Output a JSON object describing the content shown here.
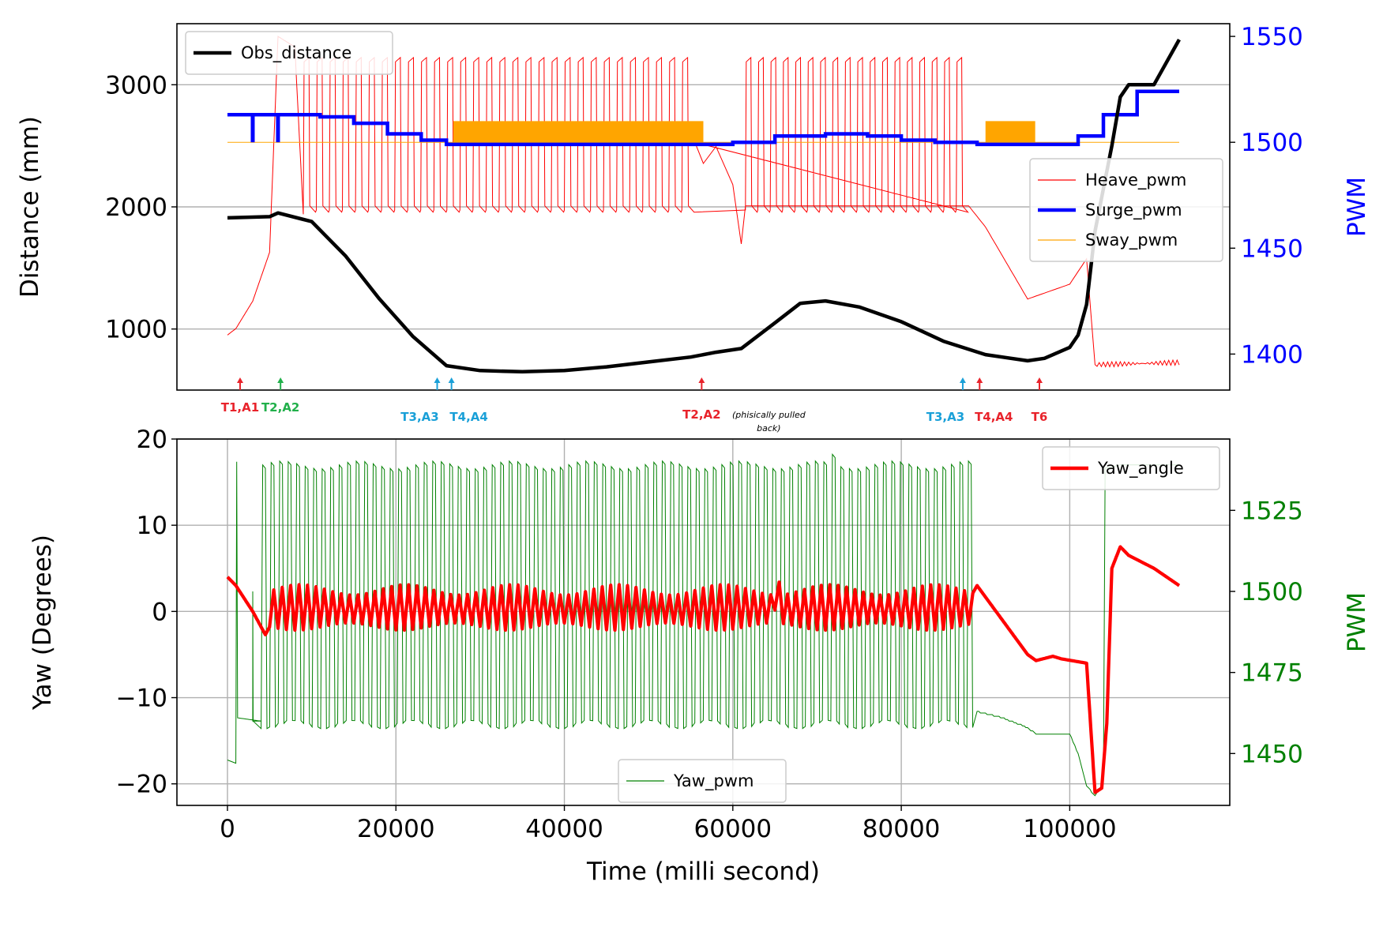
{
  "chart_data": [
    {
      "type": "line",
      "xlabel": "",
      "ylabel": "Distance (mm)",
      "y2label": "PWM",
      "xlim": [
        -6000,
        119000
      ],
      "ylim": [
        500,
        3500
      ],
      "y2lim": [
        1383,
        1556
      ],
      "yticks": [
        1000,
        2000,
        3000
      ],
      "y2ticks": [
        1400,
        1450,
        1500,
        1550
      ],
      "grid": true,
      "colors": {
        "obs": "#000000",
        "heave": "#ff0000",
        "surge": "#0000ff",
        "sway": "#ffa500",
        "axis2": "#0000ff"
      },
      "legends": {
        "left": {
          "placement": "upper-left",
          "entries": [
            "Obs_distance"
          ]
        },
        "right": {
          "placement": "center-right",
          "entries": [
            "Heave_pwm",
            "Surge_pwm",
            "Sway_pwm"
          ]
        }
      },
      "series": [
        {
          "name": "Obs_distance",
          "axis": "left",
          "x": [
            0,
            5000,
            6000,
            10000,
            14000,
            18000,
            22000,
            26000,
            30000,
            35000,
            40000,
            45000,
            50000,
            55000,
            58000,
            61000,
            65000,
            68000,
            71000,
            75000,
            80000,
            85000,
            90000,
            95000,
            97000,
            100000,
            101000,
            102000,
            103000,
            105000,
            106000,
            107000,
            110000,
            113000
          ],
          "y": [
            1910,
            1920,
            1950,
            1880,
            1600,
            1250,
            940,
            700,
            660,
            650,
            660,
            690,
            730,
            770,
            810,
            840,
            1050,
            1210,
            1230,
            1180,
            1060,
            900,
            790,
            740,
            760,
            850,
            950,
            1200,
            1800,
            2500,
            2900,
            3000,
            3000,
            3370
          ]
        },
        {
          "name": "Heave_pwm",
          "axis": "right",
          "description": "oscillation 1466-1540, about 50 cycles between 9000 and 88000 ms",
          "x": [
            0,
            1000,
            3000,
            5000,
            6000,
            8000,
            9000,
            27000,
            55000,
            58000,
            60000,
            61000,
            62000,
            66000,
            72000,
            80000,
            88000,
            90000,
            95000,
            100000,
            102000,
            103000,
            113000
          ],
          "y": [
            1409,
            1412,
            1425,
            1448,
            1550,
            1545,
            1466,
            1540,
            1540,
            1500,
            1470,
            1452,
            1545,
            1470,
            1540,
            1540,
            1470,
            1460,
            1426,
            1433,
            1445,
            1395,
            1396
          ]
        },
        {
          "name": "Surge_pwm",
          "axis": "right",
          "x": [
            0,
            3000,
            8000,
            11000,
            15000,
            19000,
            23000,
            26000,
            45000,
            56000,
            60000,
            65000,
            71000,
            76000,
            80000,
            84000,
            89000,
            96000,
            101000,
            104000,
            108000,
            113000
          ],
          "y": [
            1513,
            1513,
            1513,
            1512,
            1509,
            1504,
            1501,
            1499,
            1499,
            1499,
            1500,
            1503,
            1504,
            1503,
            1501,
            1500,
            1499,
            1499,
            1503,
            1513,
            1524,
            1524
          ]
        },
        {
          "name": "Sway_pwm",
          "axis": "right",
          "x": [
            0,
            26800,
            56500,
            90000,
            95900,
            113000
          ],
          "y": [
            1500,
            1500,
            1500,
            1500,
            1500,
            1500
          ]
        }
      ],
      "annotations": [
        {
          "text": "T1,A1",
          "x": 1500,
          "color": "#e8232b"
        },
        {
          "text": "T2,A2",
          "x": 6300,
          "color": "#22b04b"
        },
        {
          "text": "T3,A3",
          "x": 24900,
          "color": "#1aa0d8"
        },
        {
          "text": "T4,A4",
          "x": 26600,
          "color": "#1aa0d8"
        },
        {
          "text": "T2,A2",
          "x": 56300,
          "color": "#e8232b",
          "note": "(phisically pulled back)"
        },
        {
          "text": "T3,A3",
          "x": 87300,
          "color": "#1aa0d8"
        },
        {
          "text": "T4,A4",
          "x": 89300,
          "color": "#e8232b"
        },
        {
          "text": "T6",
          "x": 96400,
          "color": "#e8232b"
        }
      ]
    },
    {
      "type": "line",
      "xlabel": "Time (milli second)",
      "ylabel": "Yaw (Degrees)",
      "y2label": "PWM",
      "xlim": [
        -6000,
        119000
      ],
      "ylim": [
        -22.5,
        20
      ],
      "y2lim": [
        1434,
        1547
      ],
      "xticks": [
        0,
        20000,
        40000,
        60000,
        80000,
        100000
      ],
      "yticks": [
        -20,
        -10,
        0,
        10,
        20
      ],
      "y2ticks": [
        1450,
        1475,
        1500,
        1525
      ],
      "grid": true,
      "colors": {
        "yaw_angle": "#ff0000",
        "yaw_pwm": "#008000",
        "axis2": "#008000"
      },
      "legends": {
        "angle": {
          "placement": "upper-right",
          "entries": [
            "Yaw_angle"
          ]
        },
        "pwm": {
          "placement": "lower-center",
          "entries": [
            "Yaw_pwm"
          ]
        }
      },
      "series": [
        {
          "name": "Yaw_angle",
          "axis": "left",
          "description": "oscillation about 0 deg (about +-3) between 5000 and 89000 ms",
          "x": [
            0,
            1000,
            3000,
            4500,
            6000,
            10000,
            20000,
            30000,
            40000,
            50000,
            60000,
            61000,
            70000,
            80000,
            89000,
            92000,
            95000,
            96000,
            98000,
            99000,
            102000,
            103000,
            103800,
            104400,
            105000,
            106000,
            107000,
            110000,
            113000
          ],
          "y": [
            4,
            3,
            0,
            -2.7,
            0,
            0,
            0,
            0,
            0,
            0,
            0,
            2,
            0,
            0,
            3,
            -1,
            -5,
            -5.7,
            -5.2,
            -5.5,
            -6,
            -21,
            -20.5,
            -13,
            5,
            7.5,
            6.5,
            5,
            3
          ]
        },
        {
          "name": "Yaw_pwm",
          "axis": "right",
          "description": "oscillation 1459-1540, about 84 cycles between 4000 and 89000 ms",
          "x": [
            0,
            1000,
            1100,
            4000,
            10000,
            40000,
            60000,
            88000,
            89000,
            92000,
            95000,
            96000,
            100000,
            101000,
            102000,
            103000,
            104000,
            104200,
            106000,
            113000
          ],
          "y": [
            1448,
            1447,
            1462,
            1460,
            1540,
            1540,
            1541,
            1540,
            1463,
            1461,
            1458,
            1456,
            1456,
            1450,
            1440,
            1437,
            1441,
            1538,
            1539,
            1539
          ]
        }
      ]
    }
  ]
}
